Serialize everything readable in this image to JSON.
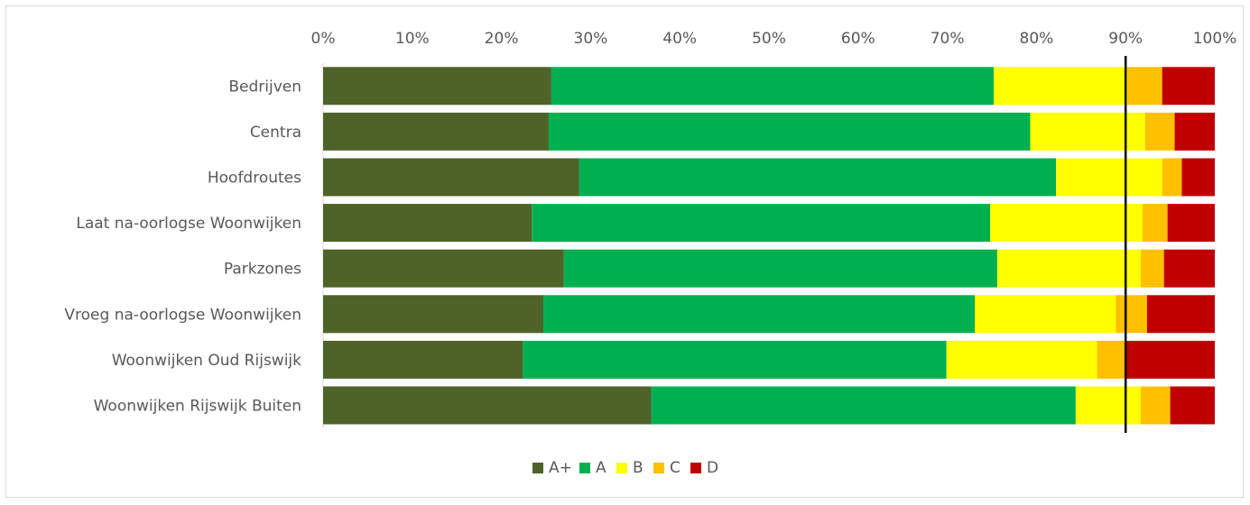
{
  "chart_data": {
    "type": "bar",
    "orientation": "horizontal",
    "stacked": "percent",
    "title": "",
    "xlabel": "",
    "ylabel": "",
    "xlim": [
      0,
      100
    ],
    "x_ticks": [
      "0%",
      "10%",
      "20%",
      "30%",
      "40%",
      "50%",
      "60%",
      "70%",
      "80%",
      "90%",
      "100%"
    ],
    "x_axis_position": "top",
    "reference_line": 90,
    "categories": [
      "Bedrijven",
      "Centra",
      "Hoofdroutes",
      "Laat na-oorlogse Woonwijken",
      "Parkzones",
      "Vroeg na-oorlogse Woonwijken",
      "Woonwijken Oud Rijswijk",
      "Woonwijken Rijswijk Buiten"
    ],
    "series": [
      {
        "name": "A+",
        "color": "#4f6228",
        "values": [
          25.6,
          25.3,
          28.7,
          23.4,
          27.0,
          24.7,
          22.4,
          36.8
        ]
      },
      {
        "name": "A",
        "color": "#00b050",
        "values": [
          49.6,
          54.0,
          53.5,
          51.4,
          48.6,
          48.4,
          47.5,
          47.6
        ]
      },
      {
        "name": "B",
        "color": "#ffff00",
        "values": [
          15.0,
          12.9,
          11.9,
          17.1,
          16.1,
          15.8,
          16.9,
          7.3
        ]
      },
      {
        "name": "C",
        "color": "#ffc000",
        "values": [
          3.9,
          3.3,
          2.2,
          2.8,
          2.6,
          3.5,
          3.3,
          3.3
        ]
      },
      {
        "name": "D",
        "color": "#c00000",
        "values": [
          5.9,
          4.5,
          3.7,
          5.3,
          5.7,
          7.6,
          9.9,
          5.0
        ]
      }
    ],
    "gridlines": false,
    "legend": "bottom"
  }
}
